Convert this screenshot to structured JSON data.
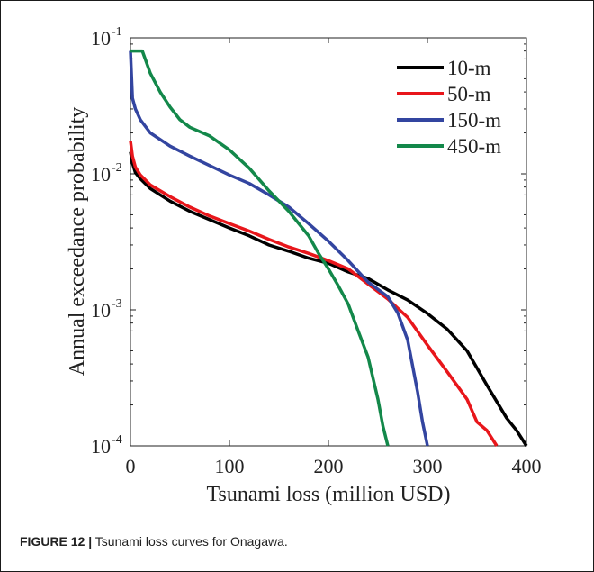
{
  "caption": {
    "label": "FIGURE 12 |",
    "text": " Tsunami loss curves for Onagawa."
  },
  "chart_data": {
    "type": "line",
    "title": "",
    "xlabel": "Tsunami loss (million USD)",
    "ylabel": "Annual exceedance probability",
    "xlim": [
      0,
      400
    ],
    "ylim": [
      0.0001,
      0.1
    ],
    "yscale": "log",
    "grid": false,
    "legend_position": "top-right",
    "x_ticks": [
      0,
      100,
      200,
      300,
      400
    ],
    "x_tick_labels": [
      "0",
      "100",
      "200",
      "300",
      "400"
    ],
    "y_ticks": [
      0.0001,
      0.001,
      0.01,
      0.1
    ],
    "y_tick_labels": [
      {
        "base": "10",
        "exp": "-4"
      },
      {
        "base": "10",
        "exp": "-3"
      },
      {
        "base": "10",
        "exp": "-2"
      },
      {
        "base": "10",
        "exp": "-1"
      }
    ],
    "series": [
      {
        "name": "10-m",
        "color": "#000000",
        "points": [
          [
            0,
            0.0145
          ],
          [
            2,
            0.012
          ],
          [
            5,
            0.0102
          ],
          [
            10,
            0.0092
          ],
          [
            20,
            0.0078
          ],
          [
            40,
            0.0063
          ],
          [
            60,
            0.0053
          ],
          [
            80,
            0.0046
          ],
          [
            100,
            0.004
          ],
          [
            120,
            0.0035
          ],
          [
            140,
            0.003
          ],
          [
            160,
            0.0027
          ],
          [
            180,
            0.0024
          ],
          [
            200,
            0.0022
          ],
          [
            220,
            0.0019
          ],
          [
            240,
            0.0017
          ],
          [
            260,
            0.0014
          ],
          [
            280,
            0.00118
          ],
          [
            300,
            0.00094
          ],
          [
            320,
            0.00072
          ],
          [
            340,
            0.0005
          ],
          [
            360,
            0.00028
          ],
          [
            380,
            0.00016
          ],
          [
            390,
            0.00013
          ],
          [
            400,
            0.0001
          ]
        ]
      },
      {
        "name": "50-m",
        "color": "#e8161b",
        "points": [
          [
            0,
            0.0175
          ],
          [
            2,
            0.0135
          ],
          [
            5,
            0.0112
          ],
          [
            10,
            0.0098
          ],
          [
            20,
            0.0083
          ],
          [
            40,
            0.0068
          ],
          [
            60,
            0.0057
          ],
          [
            80,
            0.0049
          ],
          [
            100,
            0.0043
          ],
          [
            120,
            0.0038
          ],
          [
            140,
            0.0033
          ],
          [
            160,
            0.0029
          ],
          [
            180,
            0.0026
          ],
          [
            200,
            0.0023
          ],
          [
            220,
            0.002
          ],
          [
            240,
            0.00155
          ],
          [
            260,
            0.0012
          ],
          [
            280,
            0.00088
          ],
          [
            300,
            0.00055
          ],
          [
            320,
            0.00035
          ],
          [
            340,
            0.00022
          ],
          [
            350,
            0.00015
          ],
          [
            360,
            0.00013
          ],
          [
            370,
            0.0001
          ]
        ]
      },
      {
        "name": "150-m",
        "color": "#3345a0",
        "points": [
          [
            0,
            0.08
          ],
          [
            2,
            0.036
          ],
          [
            5,
            0.03
          ],
          [
            10,
            0.025
          ],
          [
            20,
            0.02
          ],
          [
            40,
            0.016
          ],
          [
            60,
            0.0135
          ],
          [
            80,
            0.0115
          ],
          [
            100,
            0.0098
          ],
          [
            120,
            0.0085
          ],
          [
            140,
            0.007
          ],
          [
            160,
            0.0057
          ],
          [
            180,
            0.0043
          ],
          [
            200,
            0.0032
          ],
          [
            220,
            0.0023
          ],
          [
            240,
            0.0016
          ],
          [
            260,
            0.00125
          ],
          [
            270,
            0.00095
          ],
          [
            280,
            0.0006
          ],
          [
            290,
            0.00025
          ],
          [
            295,
            0.00015
          ],
          [
            300,
            0.0001
          ]
        ]
      },
      {
        "name": "450-m",
        "color": "#13884a",
        "points": [
          [
            0,
            0.08
          ],
          [
            12,
            0.08
          ],
          [
            20,
            0.055
          ],
          [
            30,
            0.04
          ],
          [
            40,
            0.031
          ],
          [
            50,
            0.025
          ],
          [
            60,
            0.022
          ],
          [
            80,
            0.019
          ],
          [
            100,
            0.015
          ],
          [
            120,
            0.011
          ],
          [
            140,
            0.0075
          ],
          [
            160,
            0.0053
          ],
          [
            180,
            0.0035
          ],
          [
            190,
            0.0026
          ],
          [
            200,
            0.002
          ],
          [
            210,
            0.0015
          ],
          [
            220,
            0.0011
          ],
          [
            230,
            0.0007
          ],
          [
            240,
            0.00045
          ],
          [
            250,
            0.00022
          ],
          [
            255,
            0.00014
          ],
          [
            260,
            0.0001
          ]
        ]
      }
    ]
  }
}
